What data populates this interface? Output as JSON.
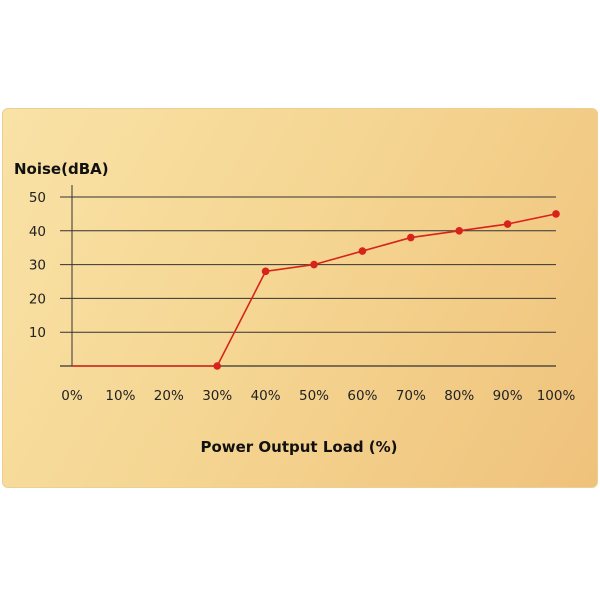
{
  "chart_data": {
    "type": "line",
    "ylabel": "Noise(dBA)",
    "xlabel": "Power Output Load (%)",
    "x": [
      "0%",
      "10%",
      "20%",
      "30%",
      "40%",
      "50%",
      "60%",
      "70%",
      "80%",
      "90%",
      "100%"
    ],
    "series": [
      {
        "points": [
          {
            "x": 30,
            "y": 0
          },
          {
            "x": 40,
            "y": 28
          },
          {
            "x": 50,
            "y": 30
          },
          {
            "x": 60,
            "y": 34
          },
          {
            "x": 70,
            "y": 38
          },
          {
            "x": 80,
            "y": 40
          },
          {
            "x": 90,
            "y": 42
          },
          {
            "x": 100,
            "y": 45
          }
        ],
        "leading_line_from_x": 0
      }
    ],
    "yticks": [
      10,
      20,
      30,
      40,
      50
    ],
    "ylim": [
      0,
      50
    ],
    "xlim": [
      0,
      100
    ],
    "grid": "horizontal",
    "colors": {
      "line": "#d8231b",
      "grid": "#333333",
      "background": "#f6d796"
    }
  }
}
